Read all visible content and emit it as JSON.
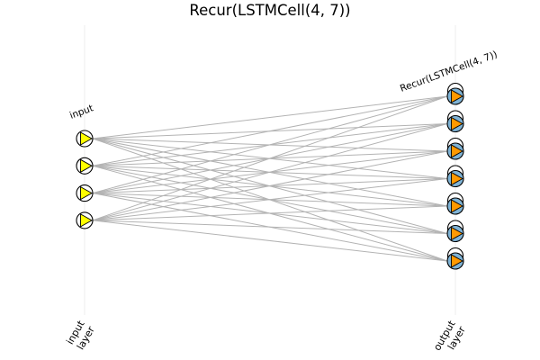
{
  "title": "Recur(LSTMCell(4, 7))",
  "input_layer": {
    "label": "input",
    "node_count": 4,
    "node_fill": "#ffffff",
    "arrow_fill": "#ffff00"
  },
  "output_layer": {
    "label": "Recur(LSTMCell(4, 7))",
    "node_count": 7,
    "node_fill": "#7fb3d5",
    "arrow_fill": "#ff9900",
    "recurrent_loops": true
  },
  "axis_labels": {
    "input": [
      "input",
      "layer"
    ],
    "output": [
      "output",
      "layer"
    ]
  },
  "colors": {
    "edge": "#b3b3b3",
    "outline": "#000000",
    "gridline": "#ececec"
  }
}
